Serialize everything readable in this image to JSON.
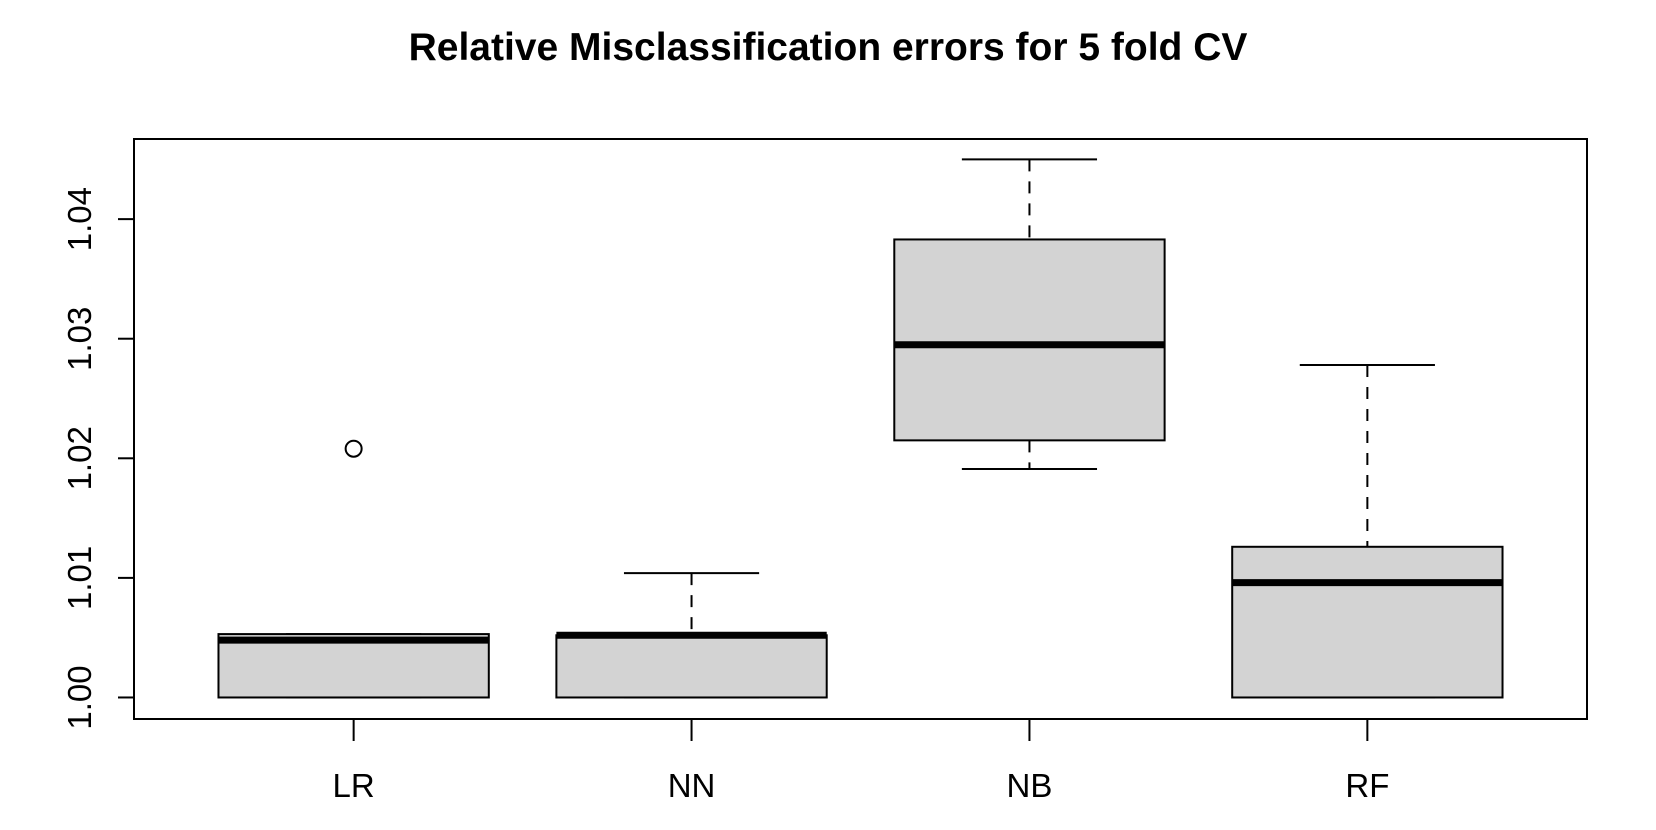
{
  "chart_data": {
    "type": "box",
    "title": "Relative Misclassification errors for 5 fold CV",
    "xlabel": "",
    "ylabel": "",
    "ylim": [
      0.9982,
      1.0467
    ],
    "yticks": [
      "1.00",
      "1.01",
      "1.02",
      "1.03",
      "1.04"
    ],
    "grid": false,
    "categories": [
      "LR",
      "NN",
      "NB",
      "RF"
    ],
    "boxes": [
      {
        "category": "LR",
        "whisker_low": 1.0,
        "q1": 1.0,
        "median": 1.0048,
        "q3": 1.0053,
        "whisker_high": 1.0053,
        "outliers": [
          1.0208
        ]
      },
      {
        "category": "NN",
        "whisker_low": 1.0,
        "q1": 1.0,
        "median": 1.0052,
        "q3": 1.0052,
        "whisker_high": 1.0104,
        "outliers": []
      },
      {
        "category": "NB",
        "whisker_low": 1.0191,
        "q1": 1.0215,
        "median": 1.0295,
        "q3": 1.0383,
        "whisker_high": 1.045,
        "outliers": []
      },
      {
        "category": "RF",
        "whisker_low": 1.0,
        "q1": 1.0,
        "median": 1.0096,
        "q3": 1.0126,
        "whisker_high": 1.0278,
        "outliers": []
      }
    ],
    "box_fill": "#d3d3d3"
  }
}
